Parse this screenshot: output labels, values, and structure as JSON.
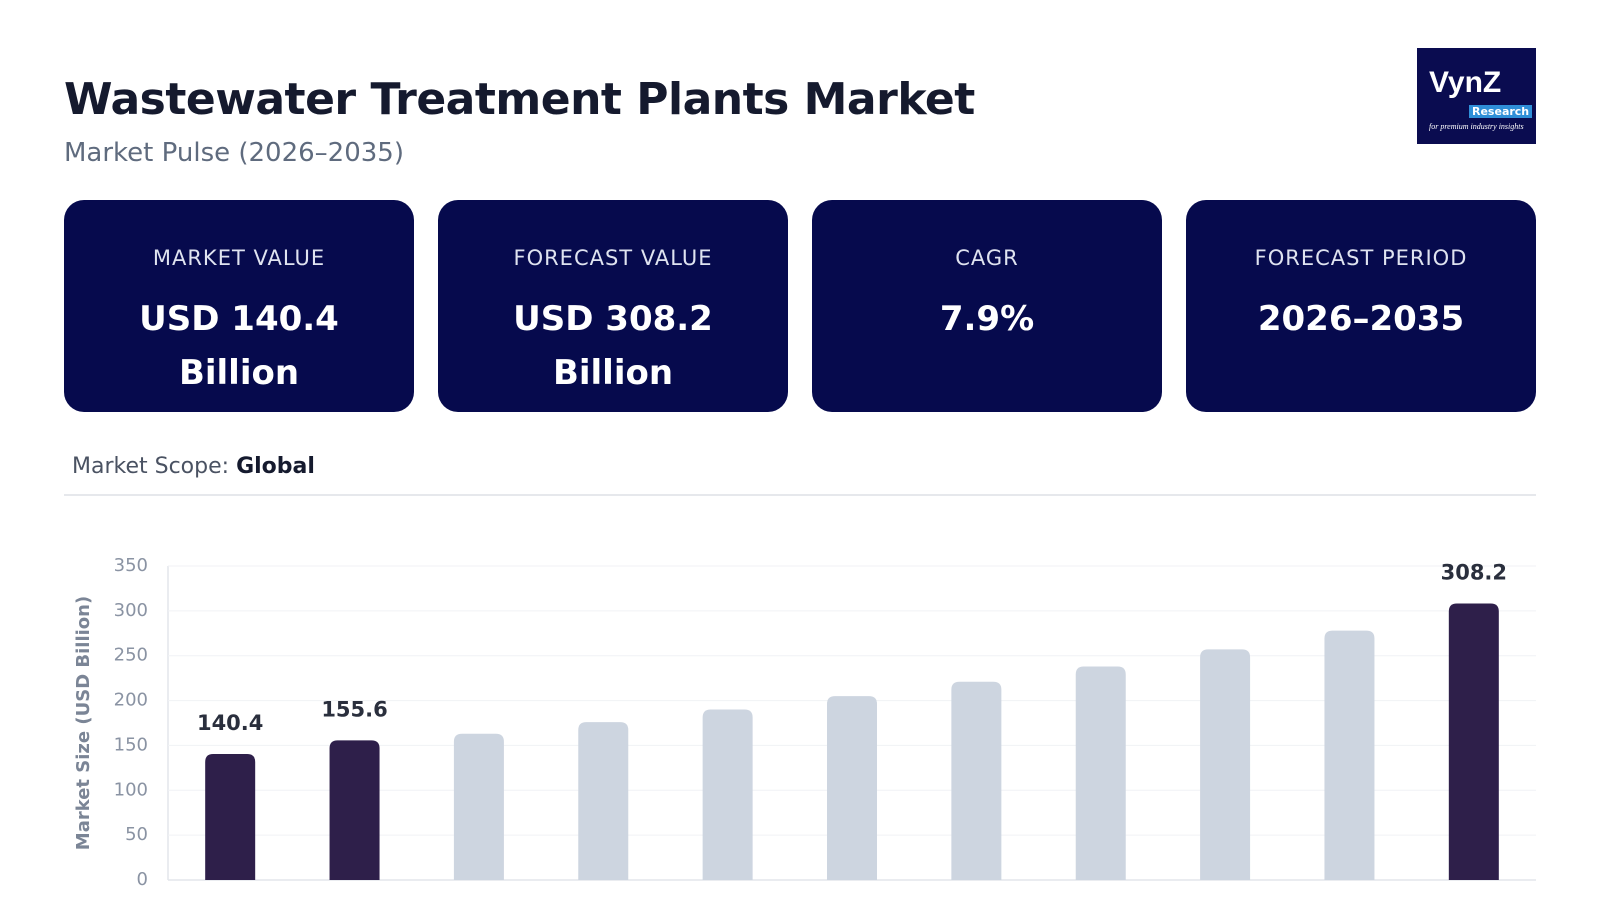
{
  "header": {
    "title": "Wastewater Treatment Plants Market",
    "subtitle": "Market Pulse (2026–2035)"
  },
  "logo": {
    "brand": "VynZ",
    "sub": "Research",
    "tagline": "for premium industry insights"
  },
  "cards": [
    {
      "label": "MARKET VALUE",
      "value": "USD 140.4 Billion"
    },
    {
      "label": "FORECAST VALUE",
      "value": "USD 308.2 Billion"
    },
    {
      "label": "CAGR",
      "value": "7.9%"
    },
    {
      "label": "FORECAST PERIOD",
      "value": "2026–2035"
    }
  ],
  "scope": {
    "label": "Market Scope:",
    "value": "Global"
  },
  "chart_data": {
    "type": "bar",
    "y_label": "Market Size (USD Billion)",
    "categories": [
      null,
      null,
      null,
      null,
      null,
      null,
      null,
      null,
      null,
      null,
      null
    ],
    "values": [
      140.4,
      155.6,
      163,
      176,
      190,
      205,
      221,
      238,
      257,
      278,
      308.2
    ],
    "colors": [
      "#2e1f4a",
      "#2e1f4a",
      "#cdd5e0",
      "#cdd5e0",
      "#cdd5e0",
      "#cdd5e0",
      "#cdd5e0",
      "#cdd5e0",
      "#cdd5e0",
      "#cdd5e0",
      "#2e1f4a"
    ],
    "labeled_indices": [
      0,
      1,
      10
    ],
    "ylim": [
      0,
      350
    ],
    "yticks": [
      0,
      50,
      100,
      150,
      200,
      250,
      300,
      350
    ],
    "grid": true
  }
}
